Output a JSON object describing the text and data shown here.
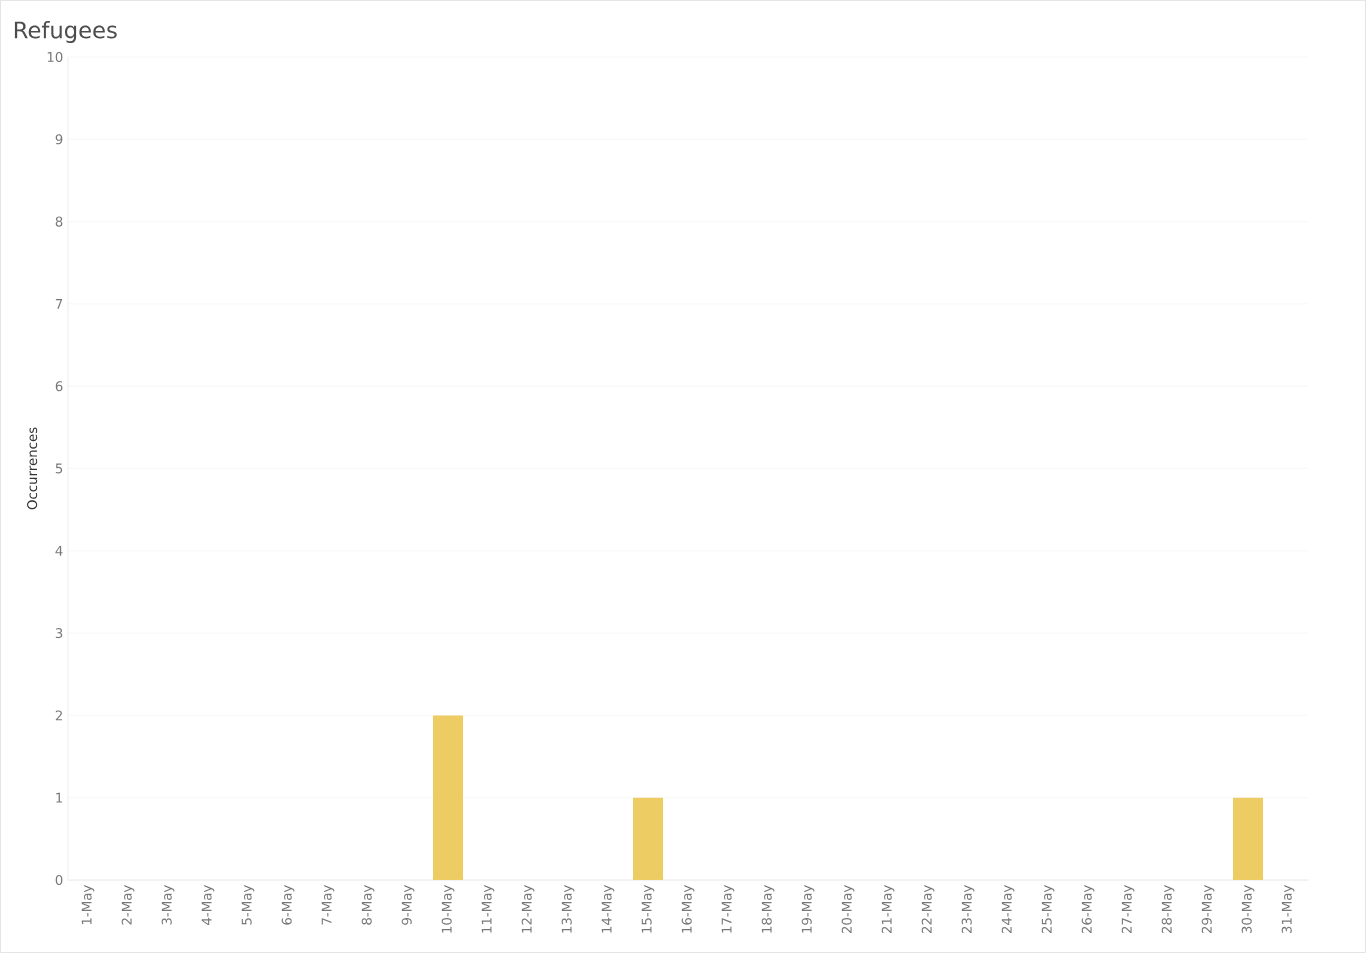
{
  "chart_data": {
    "type": "bar",
    "title": "Refugees",
    "ylabel": "Occurrences",
    "categories": [
      "1-May",
      "2-May",
      "3-May",
      "4-May",
      "5-May",
      "6-May",
      "7-May",
      "8-May",
      "9-May",
      "10-May",
      "11-May",
      "12-May",
      "13-May",
      "14-May",
      "15-May",
      "16-May",
      "17-May",
      "18-May",
      "19-May",
      "20-May",
      "21-May",
      "22-May",
      "23-May",
      "24-May",
      "25-May",
      "26-May",
      "27-May",
      "28-May",
      "29-May",
      "30-May",
      "31-May"
    ],
    "values": [
      0,
      0,
      0,
      0,
      0,
      0,
      0,
      0,
      0,
      2,
      0,
      0,
      0,
      0,
      1,
      0,
      0,
      0,
      0,
      0,
      0,
      0,
      0,
      0,
      0,
      0,
      0,
      0,
      0,
      1,
      0
    ],
    "color": "#edcc64",
    "ylim": [
      0,
      10
    ],
    "yticks": [
      0,
      1,
      2,
      3,
      4,
      5,
      6,
      7,
      8,
      9,
      10
    ],
    "grid": "y"
  }
}
